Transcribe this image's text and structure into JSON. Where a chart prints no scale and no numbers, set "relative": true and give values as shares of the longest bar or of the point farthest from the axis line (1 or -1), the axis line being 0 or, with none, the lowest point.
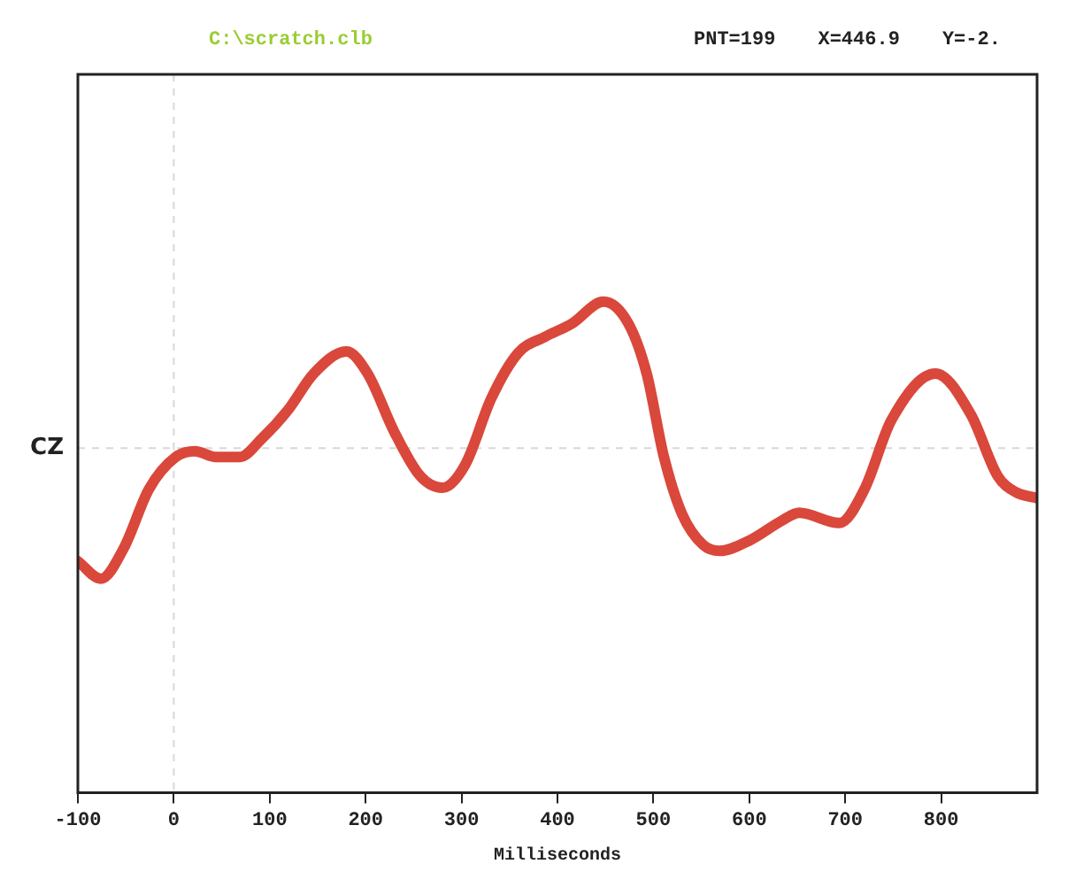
{
  "chart_data": {
    "type": "line",
    "title": "C:\\scratch.clb",
    "annotations": [
      "PNT=199",
      "X=446.9",
      "Y=-2."
    ],
    "xlabel": "Milliseconds",
    "relative": true,
    "xlim": [
      -100,
      900
    ],
    "xticks": [
      -100,
      0,
      100,
      200,
      300,
      400,
      500,
      600,
      700,
      800
    ],
    "grid": false,
    "legend": false,
    "marker": "none",
    "line_style": "solid",
    "x": [
      -100,
      -76,
      -52,
      -26,
      2,
      22,
      44,
      69,
      91,
      119,
      146,
      180,
      202,
      230,
      257,
      280,
      304,
      331,
      359,
      387,
      415,
      448,
      474,
      493,
      511,
      530,
      552,
      569,
      600,
      635,
      652,
      694,
      720,
      748,
      794,
      831,
      859,
      878,
      900
    ],
    "series": [
      {
        "color": "#d9483b",
        "values": [
          -0.77,
          -0.89,
          -0.68,
          -0.28,
          -0.06,
          -0.02,
          -0.06,
          -0.06,
          0.06,
          0.26,
          0.51,
          0.66,
          0.51,
          0.11,
          -0.19,
          -0.27,
          -0.11,
          0.34,
          0.65,
          0.76,
          0.85,
          1,
          0.85,
          0.51,
          -0.06,
          -0.45,
          -0.66,
          -0.7,
          -0.63,
          -0.49,
          -0.44,
          -0.51,
          -0.28,
          0.19,
          0.51,
          0.23,
          -0.19,
          -0.3,
          -0.34
        ]
      }
    ],
    "ref_lines": [
      {
        "axis": "x",
        "value": 0,
        "color": "#d8d8d8",
        "line_style": "dashed"
      },
      {
        "axis": "y",
        "value": 0,
        "label": "CZ",
        "color": "#d8d8d8",
        "line_style": "dashed"
      }
    ]
  }
}
